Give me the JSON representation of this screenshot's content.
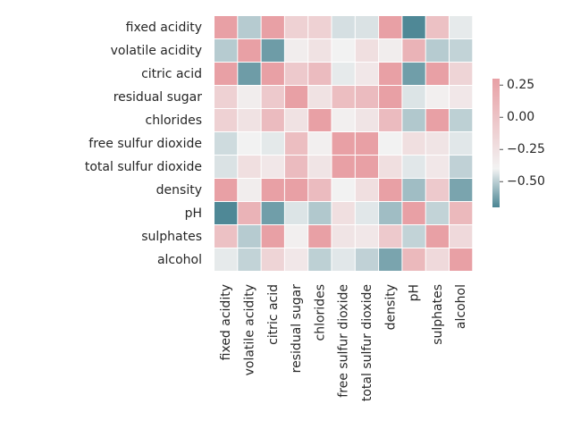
{
  "chart_data": {
    "type": "heatmap",
    "title": "",
    "xlabel": "",
    "ylabel": "",
    "labels": [
      "fixed acidity",
      "volatile acidity",
      "citric acid",
      "residual sugar",
      "chlorides",
      "free sulfur dioxide",
      "total sulfur dioxide",
      "density",
      "pH",
      "sulphates",
      "alcohol"
    ],
    "matrix": [
      [
        0.3,
        -0.25,
        0.3,
        0.12,
        0.12,
        -0.12,
        -0.1,
        0.3,
        -0.68,
        0.18,
        -0.05
      ],
      [
        -0.25,
        0.3,
        -0.55,
        0.02,
        0.06,
        0.0,
        0.07,
        0.02,
        0.23,
        -0.25,
        -0.2
      ],
      [
        0.3,
        -0.55,
        0.3,
        0.15,
        0.2,
        -0.05,
        0.04,
        0.36,
        -0.54,
        0.31,
        0.11
      ],
      [
        0.12,
        0.02,
        0.15,
        0.3,
        0.06,
        0.19,
        0.2,
        0.36,
        -0.09,
        0.01,
        0.04
      ],
      [
        0.12,
        0.06,
        0.2,
        0.06,
        0.3,
        0.01,
        0.05,
        0.2,
        -0.27,
        0.37,
        -0.22
      ],
      [
        -0.15,
        0.0,
        -0.06,
        0.19,
        0.01,
        0.3,
        0.3,
        0.0,
        0.07,
        0.05,
        -0.07
      ],
      [
        -0.1,
        0.07,
        0.04,
        0.2,
        0.05,
        0.3,
        0.3,
        0.07,
        -0.07,
        0.04,
        -0.21
      ],
      [
        0.3,
        0.02,
        0.3,
        0.3,
        0.2,
        0.0,
        0.07,
        0.3,
        -0.34,
        0.15,
        -0.5
      ],
      [
        -0.68,
        0.23,
        -0.54,
        -0.09,
        -0.27,
        0.07,
        -0.07,
        -0.34,
        0.3,
        -0.2,
        0.21
      ],
      [
        0.18,
        -0.25,
        0.31,
        0.01,
        0.37,
        0.05,
        0.04,
        0.15,
        -0.2,
        0.3,
        0.09
      ],
      [
        -0.05,
        -0.2,
        0.11,
        0.04,
        -0.22,
        -0.07,
        -0.21,
        -0.5,
        0.21,
        0.09,
        0.3
      ]
    ],
    "colorbar": {
      "ticks": [
        "0.25",
        "0.00",
        "−0.25",
        "−0.50"
      ],
      "tick_values": [
        0.25,
        0.0,
        -0.25,
        -0.5
      ],
      "vmin": -0.7,
      "vmax": 0.3
    },
    "colors": {
      "negative": "#4a8593",
      "center": "#f2f2f2",
      "positive": "#e8a0a5",
      "grid": "#ffffff",
      "text": "#262626"
    }
  }
}
